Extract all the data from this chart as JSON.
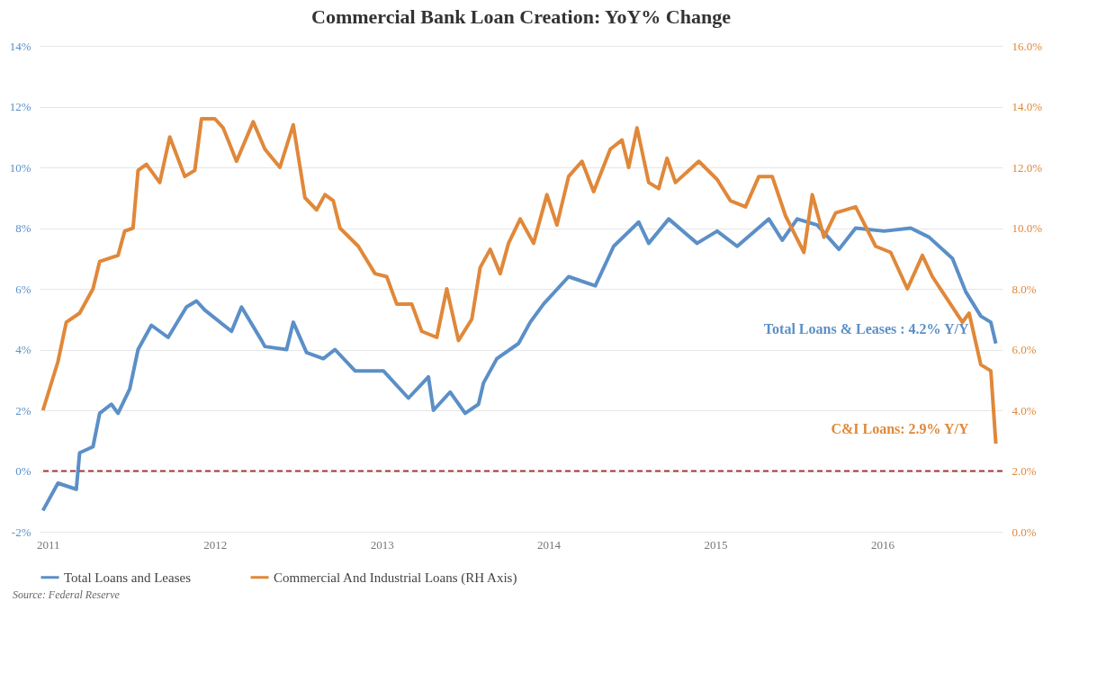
{
  "chart_data": {
    "type": "line",
    "title": "Commercial Bank Loan Creation: YoY% Change",
    "xlim": [
      2010.95,
      2016.72
    ],
    "xticks": [
      2011,
      2012,
      2013,
      2014,
      2015,
      2016
    ],
    "ylim": [
      -2,
      14
    ],
    "yticks": [
      {
        "value": -2,
        "label": "-2%"
      },
      {
        "value": 0,
        "label": "0%"
      },
      {
        "value": 2,
        "label": "2%"
      },
      {
        "value": 4,
        "label": "4%"
      },
      {
        "value": 6,
        "label": "6%"
      },
      {
        "value": 8,
        "label": "8%"
      },
      {
        "value": 10,
        "label": "10%"
      },
      {
        "value": 12,
        "label": "12%"
      },
      {
        "value": 14,
        "label": "14%"
      }
    ],
    "y2lim": [
      0,
      16
    ],
    "y2ticks": [
      {
        "value": 0,
        "label": "0.0%"
      },
      {
        "value": 2,
        "label": "2.0%"
      },
      {
        "value": 4,
        "label": "4.0%"
      },
      {
        "value": 6,
        "label": "6.0%"
      },
      {
        "value": 8,
        "label": "8.0%"
      },
      {
        "value": 10,
        "label": "10.0%"
      },
      {
        "value": 12,
        "label": "12.0%"
      },
      {
        "value": 14,
        "label": "14.0%"
      },
      {
        "value": 16,
        "label": "16.0%"
      }
    ],
    "grid": "y",
    "legend": "bottom",
    "line_style": "solid",
    "series": [
      {
        "name": "Total Loans and Leases",
        "color": "#5b8fc7",
        "x": [
          2010.97,
          2011.06,
          2011.17,
          2011.19,
          2011.27,
          2011.31,
          2011.38,
          2011.42,
          2011.49,
          2011.54,
          2011.62,
          2011.72,
          2011.83,
          2011.89,
          2011.94,
          2012.1,
          2012.16,
          2012.28,
          2012.3,
          2012.43,
          2012.47,
          2012.55,
          2012.65,
          2012.72,
          2012.84,
          2013.01,
          2013.16,
          2013.28,
          2013.31,
          2013.41,
          2013.5,
          2013.58,
          2013.61,
          2013.69,
          2013.82,
          2013.89,
          2013.97,
          2014.12,
          2014.28,
          2014.39,
          2014.54,
          2014.6,
          2014.72,
          2014.89,
          2015.01,
          2015.13,
          2015.32,
          2015.4,
          2015.49,
          2015.61,
          2015.74,
          2015.84,
          2016.01,
          2016.17,
          2016.28,
          2016.42,
          2016.5,
          2016.59,
          2016.65,
          2016.68
        ],
        "values": [
          -1.3,
          -0.4,
          -0.6,
          0.6,
          0.8,
          1.9,
          2.2,
          1.9,
          2.7,
          4.0,
          4.8,
          4.4,
          5.4,
          5.6,
          5.3,
          4.6,
          5.4,
          4.3,
          4.1,
          4.0,
          4.9,
          3.9,
          3.7,
          4.0,
          3.3,
          3.3,
          2.4,
          3.1,
          2.0,
          2.6,
          1.9,
          2.2,
          2.9,
          3.7,
          4.2,
          4.9,
          5.5,
          6.4,
          6.1,
          7.4,
          8.2,
          7.5,
          8.3,
          7.5,
          7.9,
          7.4,
          8.3,
          7.6,
          8.3,
          8.1,
          7.3,
          8.0,
          7.9,
          8.0,
          7.7,
          7.0,
          5.9,
          5.1,
          4.9,
          4.2
        ]
      },
      {
        "name": "Commercial And Industrial Loans (RH Axis)",
        "color": "#e0883a",
        "axis": "y2",
        "x": [
          2010.97,
          2011.06,
          2011.11,
          2011.19,
          2011.27,
          2011.31,
          2011.42,
          2011.46,
          2011.51,
          2011.54,
          2011.59,
          2011.67,
          2011.73,
          2011.82,
          2011.88,
          2011.92,
          2012.0,
          2012.05,
          2012.13,
          2012.23,
          2012.3,
          2012.39,
          2012.47,
          2012.54,
          2012.61,
          2012.66,
          2012.71,
          2012.75,
          2012.86,
          2012.96,
          2013.03,
          2013.09,
          2013.18,
          2013.24,
          2013.33,
          2013.39,
          2013.46,
          2013.54,
          2013.59,
          2013.65,
          2013.71,
          2013.76,
          2013.83,
          2013.91,
          2013.99,
          2014.05,
          2014.12,
          2014.2,
          2014.27,
          2014.37,
          2014.44,
          2014.48,
          2014.53,
          2014.6,
          2014.66,
          2014.71,
          2014.76,
          2014.9,
          2015.01,
          2015.09,
          2015.18,
          2015.26,
          2015.34,
          2015.42,
          2015.53,
          2015.58,
          2015.65,
          2015.72,
          2015.84,
          2015.96,
          2016.05,
          2016.15,
          2016.24,
          2016.3,
          2016.36,
          2016.48,
          2016.52,
          2016.59,
          2016.65,
          2016.68
        ],
        "values": [
          4.0,
          5.6,
          6.9,
          7.2,
          8.0,
          8.9,
          9.1,
          9.9,
          10.0,
          11.9,
          12.1,
          11.5,
          13.0,
          11.7,
          11.9,
          13.6,
          13.6,
          13.3,
          12.2,
          13.5,
          12.6,
          12.0,
          13.4,
          11.0,
          10.6,
          11.1,
          10.9,
          10.0,
          9.4,
          8.5,
          8.4,
          7.5,
          7.5,
          6.6,
          6.4,
          8.0,
          6.3,
          7.0,
          8.7,
          9.3,
          8.5,
          9.5,
          10.3,
          9.5,
          11.1,
          10.1,
          11.7,
          12.2,
          11.2,
          12.6,
          12.9,
          12.0,
          13.3,
          11.5,
          11.3,
          12.3,
          11.5,
          12.2,
          11.6,
          10.9,
          10.7,
          11.7,
          11.7,
          10.4,
          9.2,
          11.1,
          9.7,
          10.5,
          10.7,
          9.4,
          9.2,
          8.0,
          9.1,
          8.4,
          7.9,
          6.9,
          7.2,
          5.5,
          5.3,
          2.9
        ]
      }
    ],
    "ref_lines": [
      {
        "axis": "y",
        "value": 0,
        "color": "#a33a3a",
        "line_style": "dashed"
      }
    ],
    "annotations": [
      {
        "text": "Total Loans & Leases : 4.2% Y/Y",
        "x": 2016.68,
        "y": 4.2
      },
      {
        "text": "C&I Loans: 2.9% Y/Y",
        "x": 2016.68,
        "y": 0.9
      },
      "Source: Federal Reserve"
    ]
  }
}
